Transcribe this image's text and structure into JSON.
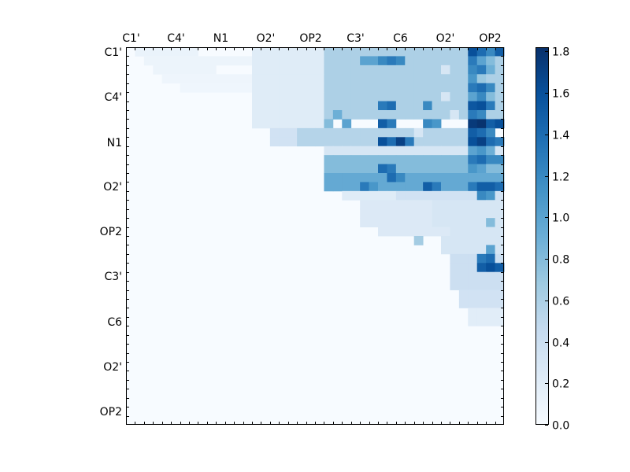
{
  "chart_data": {
    "type": "heatmap",
    "title": "",
    "xlabel": "",
    "ylabel": "",
    "grid": false,
    "colormap": "Blues",
    "color_low": "#f7fbff",
    "color_high": "#08306b",
    "x_tick_labels": [
      "C1'",
      "C4'",
      "N1",
      "O2'",
      "OP2",
      "C3'",
      "C6",
      "O2'",
      "OP2"
    ],
    "y_tick_labels": [
      "C1'",
      "C4'",
      "N1",
      "O2'",
      "OP2",
      "C3'",
      "C6",
      "O2'",
      "OP2"
    ],
    "colorbar": {
      "min": 0.0,
      "max": 1.82,
      "ticks": [
        "0.0",
        "0.2",
        "0.4",
        "0.6",
        "0.8",
        "1.0",
        "1.2",
        "1.4",
        "1.6",
        "1.8"
      ]
    },
    "regions": [
      {
        "cols": [
          1,
          7
        ],
        "rows": [
          0,
          0
        ],
        "value": 0.12
      },
      {
        "cols": [
          2,
          13
        ],
        "rows": [
          1,
          1
        ],
        "value": 0.1
      },
      {
        "cols": [
          3,
          9
        ],
        "rows": [
          2,
          2
        ],
        "value": 0.1
      },
      {
        "cols": [
          4,
          13
        ],
        "rows": [
          3,
          3
        ],
        "value": 0.08
      },
      {
        "cols": [
          6,
          13
        ],
        "rows": [
          4,
          4
        ],
        "value": 0.07
      },
      {
        "cols": [
          14,
          21
        ],
        "rows": [
          0,
          8
        ],
        "value": 0.22
      },
      {
        "cols": [
          22,
          41
        ],
        "rows": [
          0,
          7
        ],
        "value": 0.6
      },
      {
        "cols": [
          16,
          21
        ],
        "rows": [
          9,
          10
        ],
        "value": 0.35
      },
      {
        "cols": [
          19,
          40
        ],
        "rows": [
          9,
          10
        ],
        "value": 0.55
      },
      {
        "cols": [
          22,
          41
        ],
        "rows": [
          11,
          11
        ],
        "value": 0.3
      },
      {
        "cols": [
          22,
          41
        ],
        "rows": [
          12,
          13
        ],
        "value": 0.8
      },
      {
        "cols": [
          22,
          41
        ],
        "rows": [
          14,
          15
        ],
        "value": 0.95
      },
      {
        "cols": [
          24,
          29
        ],
        "rows": [
          16,
          16
        ],
        "value": 0.22
      },
      {
        "cols": [
          30,
          41
        ],
        "rows": [
          16,
          16
        ],
        "value": 0.35
      },
      {
        "cols": [
          26,
          35
        ],
        "rows": [
          17,
          19
        ],
        "value": 0.25
      },
      {
        "cols": [
          34,
          41
        ],
        "rows": [
          17,
          20
        ],
        "value": 0.3
      },
      {
        "cols": [
          28,
          35
        ],
        "rows": [
          20,
          20
        ],
        "value": 0.25
      },
      {
        "cols": [
          35,
          41
        ],
        "rows": [
          21,
          22
        ],
        "value": 0.3
      },
      {
        "cols": [
          36,
          41
        ],
        "rows": [
          23,
          26
        ],
        "value": 0.4
      },
      {
        "cols": [
          37,
          41
        ],
        "rows": [
          27,
          28
        ],
        "value": 0.35
      },
      {
        "cols": [
          38,
          41
        ],
        "rows": [
          29,
          30
        ],
        "value": 0.2
      }
    ],
    "cells": [
      {
        "c": 38,
        "r": 0,
        "v": 1.6
      },
      {
        "c": 39,
        "r": 0,
        "v": 1.4
      },
      {
        "c": 40,
        "r": 0,
        "v": 1.2
      },
      {
        "c": 41,
        "r": 0,
        "v": 1.5
      },
      {
        "c": 38,
        "r": 1,
        "v": 1.3
      },
      {
        "c": 39,
        "r": 1,
        "v": 1.0
      },
      {
        "c": 40,
        "r": 1,
        "v": 0.8
      },
      {
        "c": 38,
        "r": 2,
        "v": 1.2
      },
      {
        "c": 39,
        "r": 2,
        "v": 1.3
      },
      {
        "c": 40,
        "r": 2,
        "v": 0.9
      },
      {
        "c": 38,
        "r": 3,
        "v": 1.1
      },
      {
        "c": 39,
        "r": 3,
        "v": 0.7
      },
      {
        "c": 38,
        "r": 4,
        "v": 1.3
      },
      {
        "c": 39,
        "r": 4,
        "v": 1.4
      },
      {
        "c": 40,
        "r": 4,
        "v": 1.2
      },
      {
        "c": 38,
        "r": 5,
        "v": 1.0
      },
      {
        "c": 39,
        "r": 5,
        "v": 1.2
      },
      {
        "c": 40,
        "r": 5,
        "v": 0.8
      },
      {
        "c": 38,
        "r": 6,
        "v": 1.55
      },
      {
        "c": 39,
        "r": 6,
        "v": 1.6
      },
      {
        "c": 40,
        "r": 6,
        "v": 1.3
      },
      {
        "c": 38,
        "r": 7,
        "v": 1.3
      },
      {
        "c": 39,
        "r": 7,
        "v": 1.2
      },
      {
        "c": 38,
        "r": 8,
        "v": 1.75
      },
      {
        "c": 39,
        "r": 8,
        "v": 1.8
      },
      {
        "c": 40,
        "r": 8,
        "v": 1.5
      },
      {
        "c": 41,
        "r": 8,
        "v": 1.6
      },
      {
        "c": 38,
        "r": 9,
        "v": 1.5
      },
      {
        "c": 39,
        "r": 9,
        "v": 1.4
      },
      {
        "c": 40,
        "r": 9,
        "v": 1.2
      },
      {
        "c": 38,
        "r": 10,
        "v": 1.6
      },
      {
        "c": 39,
        "r": 10,
        "v": 1.7
      },
      {
        "c": 40,
        "r": 10,
        "v": 1.4
      },
      {
        "c": 41,
        "r": 10,
        "v": 1.3
      },
      {
        "c": 38,
        "r": 11,
        "v": 1.0
      },
      {
        "c": 39,
        "r": 11,
        "v": 1.1
      },
      {
        "c": 40,
        "r": 11,
        "v": 0.9
      },
      {
        "c": 38,
        "r": 12,
        "v": 1.3
      },
      {
        "c": 39,
        "r": 12,
        "v": 1.4
      },
      {
        "c": 40,
        "r": 12,
        "v": 1.2
      },
      {
        "c": 41,
        "r": 12,
        "v": 1.2
      },
      {
        "c": 38,
        "r": 13,
        "v": 1.1
      },
      {
        "c": 39,
        "r": 13,
        "v": 1.0
      },
      {
        "c": 38,
        "r": 15,
        "v": 1.3
      },
      {
        "c": 39,
        "r": 15,
        "v": 1.5
      },
      {
        "c": 40,
        "r": 15,
        "v": 1.5
      },
      {
        "c": 41,
        "r": 15,
        "v": 1.4
      },
      {
        "c": 39,
        "r": 16,
        "v": 1.2
      },
      {
        "c": 40,
        "r": 16,
        "v": 1.1
      },
      {
        "c": 39,
        "r": 23,
        "v": 1.3
      },
      {
        "c": 40,
        "r": 23,
        "v": 1.4
      },
      {
        "c": 39,
        "r": 24,
        "v": 1.5
      },
      {
        "c": 40,
        "r": 24,
        "v": 1.6
      },
      {
        "c": 41,
        "r": 24,
        "v": 1.5
      },
      {
        "c": 40,
        "r": 22,
        "v": 1.0
      },
      {
        "c": 40,
        "r": 19,
        "v": 0.8
      },
      {
        "c": 28,
        "r": 6,
        "v": 1.3
      },
      {
        "c": 29,
        "r": 6,
        "v": 1.4
      },
      {
        "c": 28,
        "r": 8,
        "v": 1.5
      },
      {
        "c": 29,
        "r": 8,
        "v": 1.3
      },
      {
        "c": 28,
        "r": 10,
        "v": 1.6
      },
      {
        "c": 29,
        "r": 10,
        "v": 1.4
      },
      {
        "c": 30,
        "r": 10,
        "v": 1.7
      },
      {
        "c": 31,
        "r": 10,
        "v": 1.3
      },
      {
        "c": 28,
        "r": 1,
        "v": 1.2
      },
      {
        "c": 29,
        "r": 1,
        "v": 1.3
      },
      {
        "c": 30,
        "r": 1,
        "v": 1.2
      },
      {
        "c": 26,
        "r": 1,
        "v": 1.0
      },
      {
        "c": 27,
        "r": 1,
        "v": 1.0
      },
      {
        "c": 29,
        "r": 14,
        "v": 1.4
      },
      {
        "c": 30,
        "r": 14,
        "v": 1.2
      },
      {
        "c": 26,
        "r": 15,
        "v": 1.3
      },
      {
        "c": 27,
        "r": 15,
        "v": 1.1
      },
      {
        "c": 33,
        "r": 15,
        "v": 1.5
      },
      {
        "c": 34,
        "r": 15,
        "v": 1.3
      },
      {
        "c": 28,
        "r": 13,
        "v": 1.4
      },
      {
        "c": 29,
        "r": 13,
        "v": 1.3
      },
      {
        "c": 33,
        "r": 6,
        "v": 1.2
      },
      {
        "c": 33,
        "r": 8,
        "v": 1.2
      },
      {
        "c": 34,
        "r": 8,
        "v": 1.1
      },
      {
        "c": 35,
        "r": 5,
        "v": 0.3
      },
      {
        "c": 35,
        "r": 2,
        "v": 0.3
      },
      {
        "c": 36,
        "r": 7,
        "v": 0.3
      },
      {
        "c": 32,
        "r": 9,
        "v": 0.3
      },
      {
        "c": 23,
        "r": 7,
        "v": 0.9
      },
      {
        "c": 24,
        "r": 8,
        "v": 1.0
      },
      {
        "c": 22,
        "r": 8,
        "v": 0.8
      },
      {
        "c": 32,
        "r": 21,
        "v": 0.65
      }
    ]
  }
}
